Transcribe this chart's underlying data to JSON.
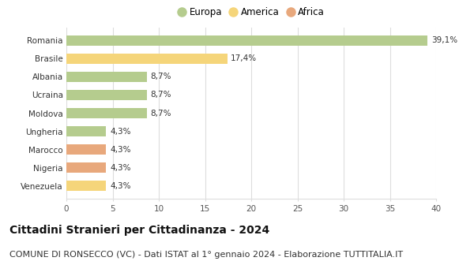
{
  "countries": [
    "Romania",
    "Brasile",
    "Albania",
    "Ucraina",
    "Moldova",
    "Ungheria",
    "Marocco",
    "Nigeria",
    "Venezuela"
  ],
  "values": [
    39.1,
    17.4,
    8.7,
    8.7,
    8.7,
    4.3,
    4.3,
    4.3,
    4.3
  ],
  "labels": [
    "39,1%",
    "17,4%",
    "8,7%",
    "8,7%",
    "8,7%",
    "4,3%",
    "4,3%",
    "4,3%",
    "4,3%"
  ],
  "continent": [
    "Europa",
    "America",
    "Europa",
    "Europa",
    "Europa",
    "Europa",
    "Africa",
    "Africa",
    "America"
  ],
  "colors": {
    "Europa": "#b5cc8e",
    "America": "#f5d57a",
    "Africa": "#e8a87c"
  },
  "legend_order": [
    "Europa",
    "America",
    "Africa"
  ],
  "legend_colors": [
    "#b5cc8e",
    "#f5d57a",
    "#e8a87c"
  ],
  "xlim": [
    0,
    40
  ],
  "xticks": [
    0,
    5,
    10,
    15,
    20,
    25,
    30,
    35,
    40
  ],
  "title": "Cittadini Stranieri per Cittadinanza - 2024",
  "subtitle": "COMUNE DI RONSECCO (VC) - Dati ISTAT al 1° gennaio 2024 - Elaborazione TUTTITALIA.IT",
  "bg_color": "#ffffff",
  "grid_color": "#dddddd",
  "title_fontsize": 10,
  "subtitle_fontsize": 8,
  "label_fontsize": 7.5,
  "tick_fontsize": 7.5,
  "legend_fontsize": 8.5
}
